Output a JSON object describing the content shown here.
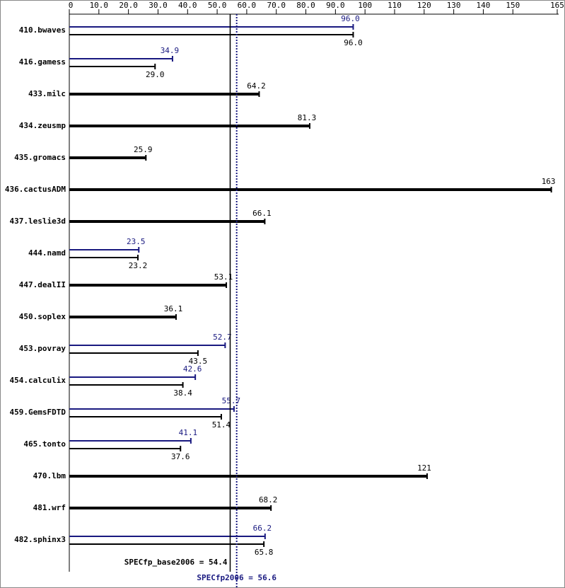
{
  "chart_data": {
    "type": "bar",
    "categories": [
      "410.bwaves",
      "416.gamess",
      "433.milc",
      "434.zeusmp",
      "435.gromacs",
      "436.cactusADM",
      "437.leslie3d",
      "444.namd",
      "447.dealII",
      "450.soplex",
      "453.povray",
      "454.calculix",
      "459.GemsFDTD",
      "465.tonto",
      "470.lbm",
      "481.wrf",
      "482.sphinx3"
    ],
    "series": [
      {
        "color": "#000000",
        "values": [
          96.0,
          29.0,
          64.2,
          81.3,
          25.9,
          163,
          66.1,
          23.2,
          53.1,
          36.1,
          43.5,
          38.4,
          51.4,
          37.6,
          121,
          68.2,
          65.8
        ],
        "value_labels": [
          "96.0",
          "29.0",
          "64.2",
          "81.3",
          "25.9",
          "163",
          "66.1",
          "23.2",
          "53.1",
          "36.1",
          "43.5",
          "38.4",
          "51.4",
          "37.6",
          "121",
          "68.2",
          "65.8"
        ]
      },
      {
        "color": "#191980",
        "values": [
          96.0,
          34.9,
          null,
          null,
          null,
          null,
          null,
          23.5,
          null,
          null,
          52.7,
          42.6,
          55.7,
          41.1,
          null,
          null,
          66.2
        ],
        "value_labels": [
          "96.0",
          "34.9",
          null,
          null,
          null,
          null,
          null,
          "23.5",
          null,
          null,
          "52.7",
          "42.6",
          "55.7",
          "41.1",
          null,
          null,
          "66.2"
        ]
      }
    ],
    "xlim": [
      0,
      165
    ],
    "xticks": [
      0,
      {
        "value": 10,
        "label": "10.0"
      },
      {
        "value": 20,
        "label": "20.0"
      },
      {
        "value": 30,
        "label": "30.0"
      },
      {
        "value": 40,
        "label": "40.0"
      },
      {
        "value": 50,
        "label": "50.0"
      },
      {
        "value": 60,
        "label": "60.0"
      },
      {
        "value": 70,
        "label": "70.0"
      },
      {
        "value": 80,
        "label": "80.0"
      },
      {
        "value": 90,
        "label": "90.0"
      },
      100,
      110,
      120,
      130,
      140,
      150,
      165
    ],
    "reference_lines": [
      {
        "label": "SPECfp_base2006 = 54.4",
        "value": 54.4,
        "color": "#000000",
        "style": "solid"
      },
      {
        "label": "SPECfp2006 = 56.6",
        "value": 56.6,
        "color": "#191980",
        "style": "dotted"
      }
    ]
  }
}
